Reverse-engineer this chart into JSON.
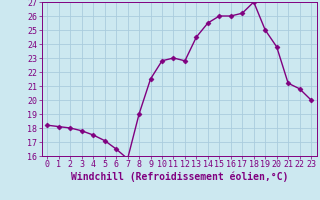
{
  "x": [
    0,
    1,
    2,
    3,
    4,
    5,
    6,
    7,
    8,
    9,
    10,
    11,
    12,
    13,
    14,
    15,
    16,
    17,
    18,
    19,
    20,
    21,
    22,
    23
  ],
  "y": [
    18.2,
    18.1,
    18.0,
    17.8,
    17.5,
    17.1,
    16.5,
    15.8,
    19.0,
    21.5,
    22.8,
    23.0,
    22.8,
    24.5,
    25.5,
    26.0,
    26.0,
    26.2,
    27.0,
    25.0,
    23.8,
    21.2,
    20.8,
    20.0
  ],
  "line_color": "#800080",
  "marker": "D",
  "marker_size": 2.5,
  "linewidth": 1.0,
  "xlabel": "Windchill (Refroidissement éolien,°C)",
  "xlabel_fontsize": 7,
  "ylim": [
    16,
    27
  ],
  "xlim": [
    -0.5,
    23.5
  ],
  "yticks": [
    16,
    17,
    18,
    19,
    20,
    21,
    22,
    23,
    24,
    25,
    26,
    27
  ],
  "xticks": [
    0,
    1,
    2,
    3,
    4,
    5,
    6,
    7,
    8,
    9,
    10,
    11,
    12,
    13,
    14,
    15,
    16,
    17,
    18,
    19,
    20,
    21,
    22,
    23
  ],
  "bg_color": "#cce8f0",
  "grid_color": "#aaccdd",
  "tick_fontsize": 6,
  "label_color": "#800080"
}
